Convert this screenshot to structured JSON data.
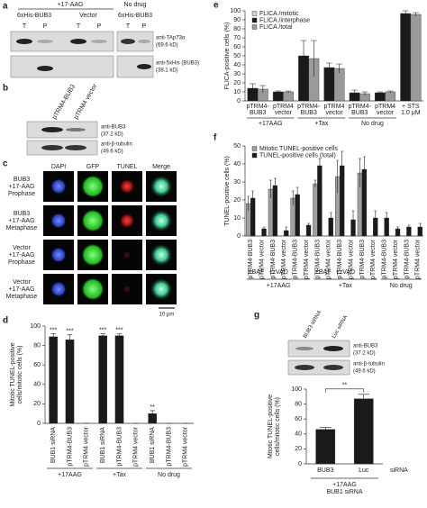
{
  "panel_a": {
    "letter": "a",
    "top_group": "+17-AAG",
    "right_group": "No drug",
    "lane_groups": [
      "6xHis-BUB3",
      "Vector",
      "6xHis-BUB3"
    ],
    "lanes": [
      "T",
      "P",
      "T",
      "P",
      "T",
      "P"
    ],
    "rows": [
      [
        "anti-TAp73α",
        "(69.6 kD)"
      ],
      [
        "anti-5xHis (BUB3)",
        "(38.1 kD)"
      ]
    ]
  },
  "panel_b": {
    "letter": "b",
    "lanes": [
      "pTRM4-BUB3",
      "pTRM4 vector"
    ],
    "rows": [
      [
        "anti-BUB3",
        "(37.2 kD)"
      ],
      [
        "anti-β-tubulin",
        "(49.6 kD)"
      ]
    ]
  },
  "panel_c": {
    "letter": "c",
    "columns": [
      "DAPI",
      "GFP",
      "TUNEL",
      "Merge"
    ],
    "rows": [
      [
        "BUB3",
        "+17-AAG",
        "Prophase"
      ],
      [
        "BUB3",
        "+17-AAG",
        "Metaphase"
      ],
      [
        "Vector",
        "+17-AAG",
        "Prophase"
      ],
      [
        "Vector",
        "+17-AAG",
        "Metaphase"
      ]
    ],
    "scale_bar": "10 μm"
  },
  "panel_g_blot": {
    "lanes": [
      "BUB3 siRNA",
      "Luc siRNA"
    ],
    "rows": [
      [
        "anti-BUB3",
        "(37.2 kD)"
      ],
      [
        "anti-β-tubulin",
        "(49.6 kD)"
      ]
    ]
  },
  "chart_data": [
    {
      "type": "bar",
      "letter": "d",
      "ylabel": [
        "Mitotic TUNEL-positive",
        "cells/mitotic cells (%)"
      ],
      "ylim": [
        0,
        100
      ],
      "yticks": [
        0,
        20,
        40,
        60,
        80,
        100
      ],
      "groups": [
        {
          "label": "+17AAG",
          "categories": [
            "BUB1 siRNA",
            "pTRM4-BUB3",
            "pTRM4 vector"
          ]
        },
        {
          "label": "+Tax",
          "categories": [
            "BUB1 siRNA",
            "pTRM4-BUB3",
            "pTRM4 vector"
          ]
        },
        {
          "label": "No drug",
          "categories": [
            "BUB1 siRNA",
            "pTRM4-BUB3",
            "pTRM4 vector"
          ]
        }
      ],
      "series": [
        {
          "color": "#1a1a1a",
          "values": [
            89,
            86,
            0,
            90,
            90,
            0,
            10,
            0,
            0
          ],
          "errors": [
            3,
            5,
            0,
            2,
            2,
            0,
            3,
            0,
            0
          ],
          "significance": [
            "***",
            "***",
            null,
            "***",
            "***",
            null,
            "**",
            null,
            null
          ]
        }
      ]
    },
    {
      "type": "bar",
      "letter": "e",
      "ylabel": "FLICA-positive cells (%)",
      "ylim": [
        0,
        100
      ],
      "yticks": [
        0,
        10,
        20,
        30,
        40,
        50,
        60,
        70,
        80,
        90,
        100
      ],
      "legend": "top-left",
      "groups": [
        {
          "label": "+17AAG",
          "categories": [
            [
              "pTRM4-",
              "BUB3"
            ],
            [
              "pTRM4",
              "vector"
            ]
          ]
        },
        {
          "label": "+Tax",
          "categories": [
            [
              "pTRM4-",
              "BUB3"
            ],
            [
              "pTRM4",
              "vector"
            ]
          ]
        },
        {
          "label": "No drug",
          "categories": [
            [
              "pTRM4-",
              "BUB3"
            ],
            [
              "pTRM4",
              "vector"
            ]
          ]
        },
        {
          "categories": [
            [
              "+ STS",
              "1.0 μM"
            ]
          ]
        }
      ],
      "series": [
        {
          "name": "FLICA /mitotic",
          "color": "#d0d0d0",
          "values": [
            null,
            null,
            null,
            null,
            null,
            null,
            null
          ]
        },
        {
          "name": "FLICA /interphase",
          "color": "#1a1a1a",
          "values": [
            14,
            10,
            50,
            37,
            9,
            9,
            97
          ],
          "errors": [
            5,
            1,
            17,
            5,
            3,
            1,
            3
          ]
        },
        {
          "name": "FLICA /total",
          "color": "#9a9a9a",
          "values": [
            13,
            10,
            47,
            36,
            8,
            10,
            96
          ],
          "errors": [
            4,
            1,
            20,
            5,
            2,
            1,
            2
          ]
        }
      ]
    },
    {
      "type": "bar",
      "letter": "f",
      "ylabel": "TUNEL-positive cells (%)",
      "ylim": [
        0,
        50
      ],
      "yticks": [
        0,
        10,
        20,
        30,
        40,
        50
      ],
      "legend": "top-left",
      "groups": [
        {
          "label": "+17AAG",
          "subgroups": [
            {
              "label": "+BAF",
              "categories": [
                "pTRM4-BUB3",
                "pTRM4 vector"
              ]
            },
            {
              "label": "+zVAD",
              "categories": [
                "pTRM4-BUB3",
                "pTRM4 vector"
              ]
            },
            {
              "categories": [
                "pTRM4-BUB3",
                "pTRM4 vector"
              ]
            }
          ]
        },
        {
          "label": "+Tax",
          "subgroups": [
            {
              "label": "+BAF",
              "categories": [
                "pTRM4-BUB3",
                "pTRM4 vector"
              ]
            },
            {
              "label": "+zVAD",
              "categories": [
                "pTRM4-BUB3",
                "pTRM4 vector"
              ]
            },
            {
              "categories": [
                "pTRM4-BUB3",
                "pTRM4 vector"
              ]
            }
          ]
        },
        {
          "label": "No drug",
          "categories": [
            "pTRM4-BUB3",
            "pTRM4 vector",
            "pTRM4-BUB3",
            "pTRM4 vector"
          ]
        }
      ],
      "series": [
        {
          "name": "Mitotic TUNEL-positive cells",
          "color": "#a0a0a0",
          "values": [
            18,
            null,
            26,
            null,
            21,
            null,
            29,
            null,
            33,
            null,
            35,
            null,
            null,
            null,
            null,
            null
          ],
          "errors": [
            4,
            null,
            5,
            null,
            4,
            null,
            2,
            null,
            9,
            null,
            8,
            null,
            null,
            null,
            null,
            null
          ]
        },
        {
          "name": "TUNEL-positive cells (total)",
          "color": "#1a1a1a",
          "values": [
            21,
            4,
            28,
            3,
            23,
            6,
            39,
            10,
            39,
            9,
            37,
            10,
            10,
            4,
            5,
            5
          ],
          "errors": [
            4,
            1,
            4,
            2,
            4,
            1,
            4,
            3,
            8,
            5,
            7,
            4,
            3,
            1,
            1,
            2
          ]
        }
      ]
    },
    {
      "type": "bar",
      "letter": "g",
      "ylabel": [
        "Mitotic TUNEL-positive",
        "cells/mitotic cells (%)"
      ],
      "ylim": [
        0,
        100
      ],
      "yticks": [
        0,
        20,
        40,
        60,
        80,
        100
      ],
      "categories": [
        "BUB3",
        "Luc"
      ],
      "xlabel": "siRNA",
      "note": [
        "+17AAG",
        "BUB1 siRNA"
      ],
      "bracket_label": "**",
      "series": [
        {
          "color": "#1a1a1a",
          "values": [
            46,
            87
          ],
          "errors": [
            3,
            6
          ]
        }
      ]
    }
  ]
}
